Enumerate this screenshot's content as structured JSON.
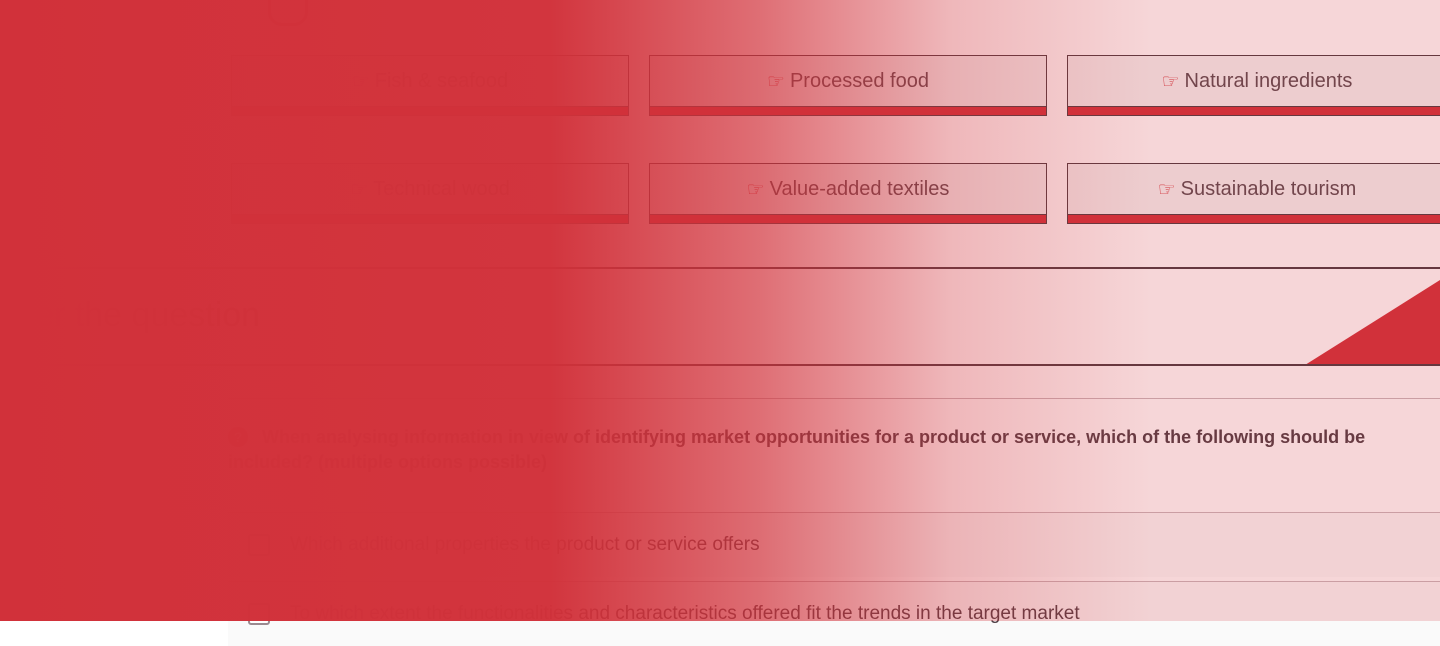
{
  "sectors": [
    {
      "label": "Fish & seafood"
    },
    {
      "label": "Processed food"
    },
    {
      "label": "Natural ingredients"
    },
    {
      "label": "Technical wood"
    },
    {
      "label": "Value-added textiles"
    },
    {
      "label": "Sustainable tourism"
    }
  ],
  "section": {
    "heading": "Answer the question"
  },
  "question": {
    "icon": "question-circle-icon",
    "text": "When analysing information in view of identifying market opportunities for a product or service, which of the following should be included? (multiple options possible)",
    "options": [
      {
        "label": "Which additional properties the product or service offers",
        "checked": false
      },
      {
        "label": "To which extent the functionalities and characteristics offered fit the trends in the target market",
        "checked": false
      }
    ]
  },
  "colors": {
    "accent": "#d1313a",
    "text": "#4d3d44"
  }
}
